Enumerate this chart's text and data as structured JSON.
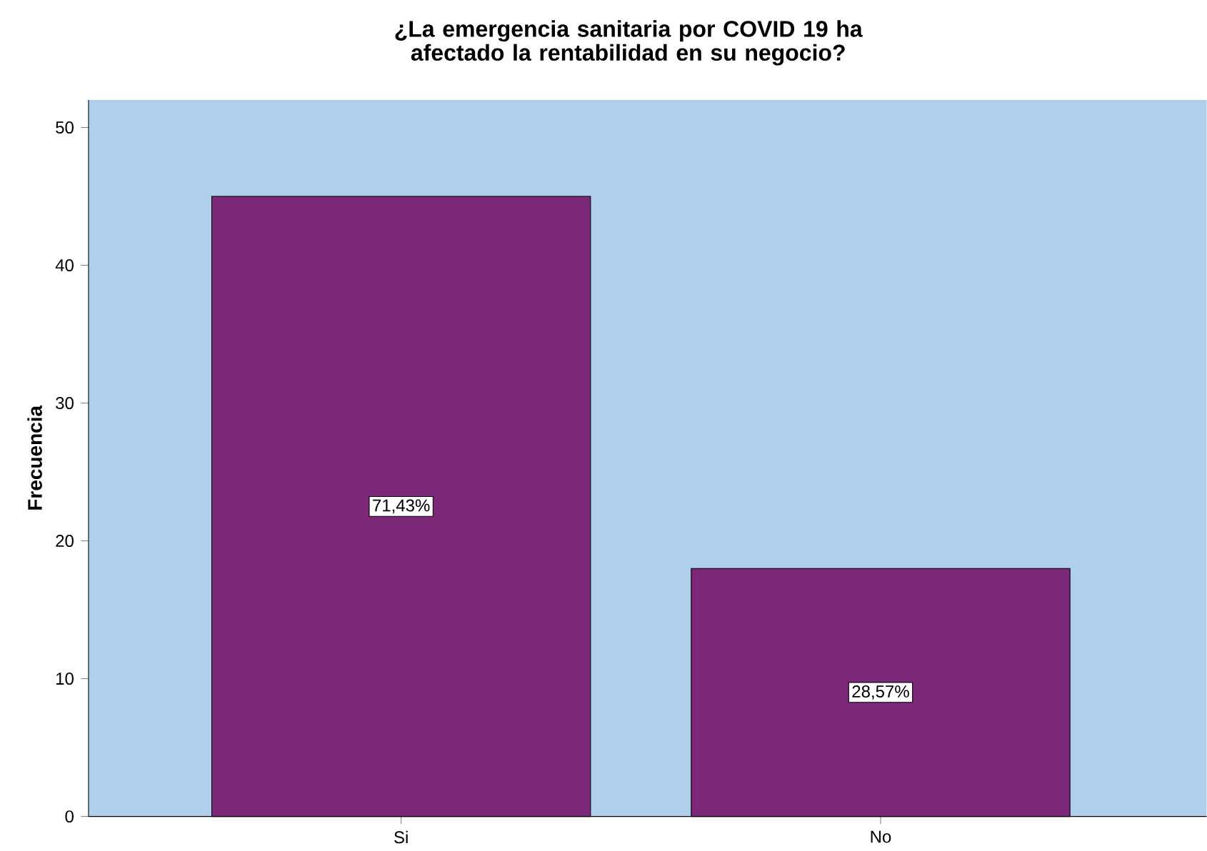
{
  "chart_data": {
    "type": "bar",
    "title": "¿La emergencia sanitaria por COVID 19 ha afectado la rentabilidad en su negocio?",
    "ylabel": "Frecuencia",
    "categories": [
      "Si",
      "No"
    ],
    "values": [
      45,
      18
    ],
    "color": "#7b2878",
    "annotations": [
      "71,43%",
      "28,57%"
    ],
    "ylim": [
      0,
      52
    ],
    "yticks": [
      0,
      10,
      20,
      30,
      40,
      50
    ]
  }
}
